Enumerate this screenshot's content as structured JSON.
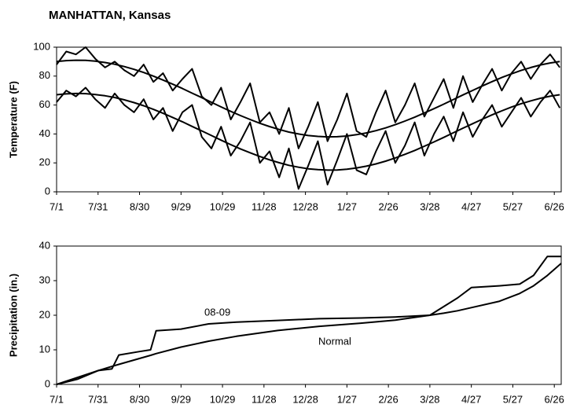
{
  "chart_data": [
    {
      "type": "line",
      "title": "MANHATTAN, Kansas",
      "y_label": "Temperature (F)",
      "x": [
        0,
        7,
        14,
        21,
        28,
        35,
        42,
        49,
        56,
        63,
        70,
        77,
        84,
        91,
        98,
        105,
        112,
        119,
        126,
        133,
        140,
        147,
        154,
        161,
        168,
        175,
        182,
        189,
        196,
        203,
        210,
        217,
        224,
        231,
        238,
        245,
        252,
        259,
        266,
        273,
        280,
        287,
        294,
        301,
        308,
        315,
        322,
        329,
        336,
        343,
        350,
        357,
        364
      ],
      "series": [
        {
          "color": "#000000",
          "values": [
            88,
            97,
            95,
            100,
            92,
            86,
            90,
            84,
            80,
            88,
            76,
            82,
            70,
            78,
            85,
            66,
            60,
            72,
            50,
            62,
            75,
            48,
            55,
            40,
            58,
            30,
            45,
            62,
            35,
            50,
            68,
            42,
            38,
            55,
            70,
            48,
            60,
            75,
            52,
            65,
            78,
            58,
            80,
            62,
            74,
            85,
            70,
            82,
            90,
            78,
            88,
            95,
            86
          ]
        },
        {
          "color": "#000000",
          "values": [
            62,
            70,
            66,
            72,
            64,
            58,
            68,
            60,
            55,
            64,
            50,
            58,
            42,
            55,
            60,
            38,
            30,
            45,
            25,
            35,
            48,
            20,
            28,
            10,
            30,
            2,
            18,
            35,
            5,
            22,
            40,
            15,
            12,
            28,
            42,
            20,
            32,
            48,
            25,
            40,
            52,
            35,
            55,
            38,
            50,
            60,
            45,
            55,
            65,
            52,
            62,
            70,
            58
          ]
        },
        {
          "color": "#000000",
          "values": [
            90.1,
            90.7,
            91,
            90.9,
            90.3,
            89.4,
            88.2,
            86.6,
            84.7,
            82.5,
            80.0,
            77.3,
            74.4,
            71.4,
            68.2,
            65.1,
            61.9,
            58.7,
            55.6,
            52.7,
            50.0,
            47.4,
            45.1,
            43.1,
            41.3,
            40.0,
            38.9,
            38.3,
            38,
            38.1,
            38.6,
            39.5,
            40.7,
            42.3,
            44.2,
            46.4,
            48.9,
            51.6,
            54.5,
            57.5,
            60.6,
            63.8,
            67.0,
            70.1,
            73.2,
            76.2,
            79.0,
            81.6,
            83.9,
            85.9,
            87.7,
            89.1,
            90.1
          ]
        },
        {
          "color": "#000000",
          "values": [
            67.1,
            67.7,
            68,
            67.9,
            67.3,
            66.4,
            65.2,
            63.6,
            61.7,
            59.5,
            57.0,
            54.3,
            51.4,
            48.4,
            45.2,
            42.1,
            38.9,
            35.7,
            32.6,
            29.7,
            27.0,
            24.4,
            22.1,
            20.1,
            18.3,
            17.0,
            15.9,
            15.3,
            15,
            15.1,
            15.6,
            16.5,
            17.7,
            19.3,
            21.2,
            23.4,
            25.9,
            28.6,
            31.5,
            34.5,
            37.6,
            40.8,
            44.0,
            47.1,
            50.2,
            53.2,
            56.0,
            58.6,
            60.9,
            62.9,
            64.7,
            66.1,
            67.1
          ]
        }
      ],
      "xlim": [
        0,
        365
      ],
      "ylim": [
        0,
        100
      ],
      "yticks": [
        0,
        20,
        40,
        60,
        80,
        100
      ],
      "xticks": [
        {
          "value": 0,
          "label": "7/1"
        },
        {
          "value": 30,
          "label": "7/31"
        },
        {
          "value": 60,
          "label": "8/30"
        },
        {
          "value": 90,
          "label": "9/29"
        },
        {
          "value": 120,
          "label": "10/29"
        },
        {
          "value": 150,
          "label": "11/28"
        },
        {
          "value": 180,
          "label": "12/28"
        },
        {
          "value": 210,
          "label": "1/27"
        },
        {
          "value": 240,
          "label": "2/26"
        },
        {
          "value": 270,
          "label": "3/28"
        },
        {
          "value": 300,
          "label": "4/27"
        },
        {
          "value": 330,
          "label": "5/27"
        },
        {
          "value": 360,
          "label": "6/26"
        }
      ]
    },
    {
      "type": "line",
      "y_label": "Precipitation (in.)",
      "x": [
        0,
        15,
        30,
        40,
        45,
        60,
        68,
        72,
        90,
        110,
        130,
        160,
        190,
        220,
        245,
        270,
        280,
        290,
        300,
        320,
        335,
        345,
        355,
        365
      ],
      "series": [
        {
          "name": "08-09",
          "color": "#000000",
          "values": [
            0,
            1.5,
            4,
            4.5,
            8.5,
            9.5,
            10,
            15.5,
            16,
            17.5,
            18,
            18.5,
            19,
            19.2,
            19.5,
            20,
            22.5,
            25,
            28,
            28.5,
            29,
            31.5,
            37,
            37
          ]
        },
        {
          "name": "Normal",
          "color": "#000000",
          "values": [
            0,
            2,
            4,
            5.2,
            5.8,
            7.5,
            8.4,
            8.9,
            10.8,
            12.5,
            13.9,
            15.6,
            16.8,
            17.7,
            18.6,
            20,
            20.6,
            21.3,
            22.2,
            24,
            26.3,
            28.5,
            31.5,
            35
          ]
        }
      ],
      "xlim": [
        0,
        365
      ],
      "ylim": [
        0,
        40
      ],
      "yticks": [
        0,
        10,
        20,
        30,
        40
      ],
      "xticks": [
        {
          "value": 0,
          "label": "7/1"
        },
        {
          "value": 30,
          "label": "7/31"
        },
        {
          "value": 60,
          "label": "8/30"
        },
        {
          "value": 90,
          "label": "9/29"
        },
        {
          "value": 120,
          "label": "10/29"
        },
        {
          "value": 150,
          "label": "11/28"
        },
        {
          "value": 180,
          "label": "12/28"
        },
        {
          "value": 210,
          "label": "1/27"
        },
        {
          "value": 240,
          "label": "2/26"
        },
        {
          "value": 270,
          "label": "3/28"
        },
        {
          "value": 300,
          "label": "4/27"
        },
        {
          "value": 330,
          "label": "5/27"
        },
        {
          "value": 360,
          "label": "6/26"
        }
      ]
    }
  ]
}
